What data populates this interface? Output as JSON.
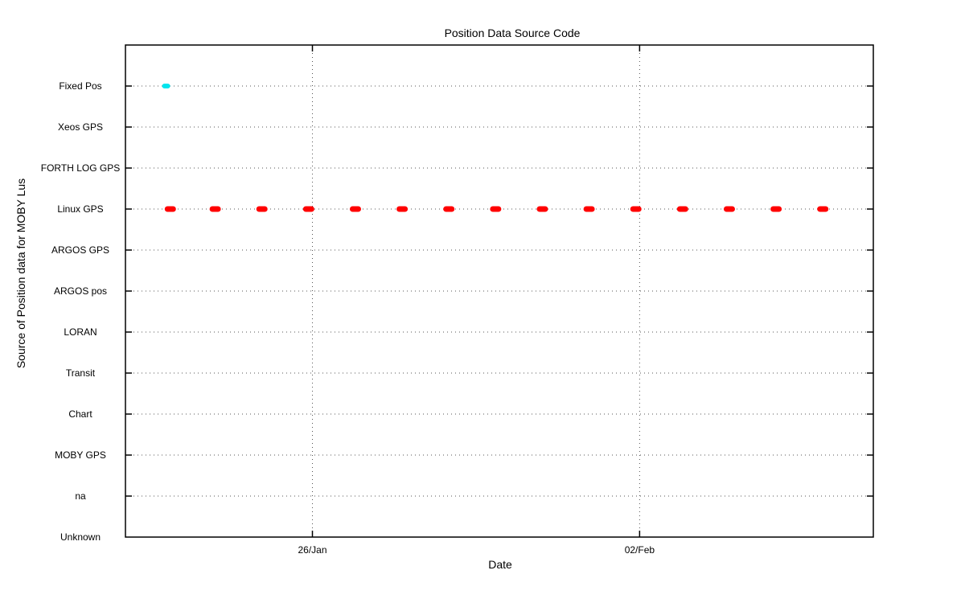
{
  "chart_data": {
    "type": "scatter",
    "title": "Position Data Source Code",
    "xlabel": "Date",
    "ylabel": "Source of Position data for MOBY Lus",
    "y_categories": [
      "Unknown",
      "na",
      "MOBY GPS",
      "Chart",
      "Transit",
      "LORAN",
      "ARGOS pos",
      "ARGOS GPS",
      "Linux GPS",
      "FORTH LOG GPS",
      "Xeos GPS",
      "Fixed Pos"
    ],
    "x_ticks": [
      {
        "label": "26/Jan",
        "day": 26
      },
      {
        "label": "02/Feb",
        "day": 33
      }
    ],
    "xlim_days": [
      22,
      38
    ],
    "x_unit_note": "days of January",
    "grid": true,
    "series": [
      {
        "color": "#00e5ee",
        "category": "Fixed Pos",
        "x_days": [
          22.87
        ]
      },
      {
        "color": "#ff0000",
        "category": "Linux GPS",
        "x_days": [
          22.96,
          23.92,
          24.92,
          25.92,
          26.92,
          27.92,
          28.92,
          29.92,
          30.92,
          31.92,
          32.92,
          33.92,
          34.92,
          35.92,
          36.92
        ]
      }
    ]
  }
}
